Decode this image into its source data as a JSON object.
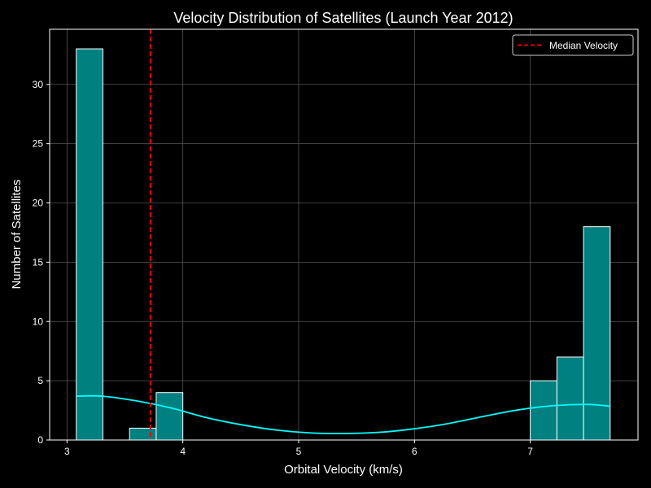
{
  "chart_data": {
    "type": "bar",
    "title": "Velocity Distribution of Satellites (Launch Year 2012)",
    "xlabel": "Orbital Velocity (km/s)",
    "ylabel": "Number of Satellites",
    "xlim": [
      2.85,
      7.93
    ],
    "ylim": [
      0,
      34.65
    ],
    "xticks": [
      3,
      4,
      5,
      6,
      7
    ],
    "yticks": [
      0,
      5,
      10,
      15,
      20,
      25,
      30
    ],
    "grid": true,
    "legend_position": "top-right",
    "bins": [
      {
        "x0": 3.08,
        "x1": 3.31,
        "count": 33
      },
      {
        "x0": 3.31,
        "x1": 3.54,
        "count": 0
      },
      {
        "x0": 3.54,
        "x1": 3.77,
        "count": 1
      },
      {
        "x0": 3.77,
        "x1": 4.0,
        "count": 4
      },
      {
        "x0": 7.0,
        "x1": 7.23,
        "count": 5
      },
      {
        "x0": 7.23,
        "x1": 7.46,
        "count": 7
      },
      {
        "x0": 7.46,
        "x1": 7.69,
        "count": 18
      }
    ],
    "kde": {
      "x": [
        3.08,
        3.3,
        3.6,
        3.9,
        4.2,
        4.5,
        4.8,
        5.1,
        5.4,
        5.7,
        6.0,
        6.3,
        6.6,
        6.9,
        7.2,
        7.5,
        7.69
      ],
      "y": [
        3.7,
        3.7,
        3.3,
        2.7,
        1.9,
        1.3,
        0.85,
        0.6,
        0.55,
        0.65,
        0.95,
        1.4,
        2.0,
        2.55,
        2.9,
        3.0,
        2.85
      ]
    },
    "median": {
      "value": 3.72,
      "label": "Median Velocity"
    },
    "colors": {
      "background": "#000000",
      "bar_fill": "#008080",
      "bar_edge": "#ffffff",
      "kde_line": "#00ffff",
      "median_line": "#ff0000",
      "grid": "#555555",
      "text": "#ffffff"
    }
  }
}
